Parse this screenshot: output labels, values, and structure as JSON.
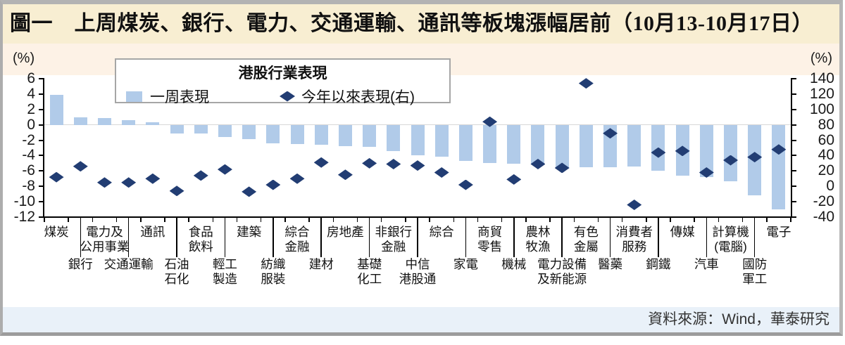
{
  "title": "圖一　上周煤炭、銀行、電力、交通運輸、通訊等板塊漲幅居前（10月13-10月17日）",
  "source": "資料來源：Wind，華泰研究",
  "legend": {
    "title": "港股行業表現",
    "week_label": "一周表現",
    "ytd_label": "今年以來表現(右)"
  },
  "colors": {
    "bar": "#b1cbe9",
    "diamond": "#223d73",
    "title_bg": "#f8eed2",
    "header_band_bg": "#fdf2e6",
    "source_bg": "#e9f1f9",
    "zero_line": "#d8d8d8",
    "frame": "#b0b0b0"
  },
  "chart_data": {
    "type": "bar",
    "title": "港股行業表現",
    "legend_position": "top",
    "grid": "zero-line-only",
    "left_axis": {
      "label": "(%)",
      "min": -12,
      "max": 6,
      "tick_step": 2,
      "ticks": [
        6,
        4,
        2,
        0,
        -2,
        -4,
        -6,
        -8,
        -10,
        -12
      ]
    },
    "right_axis": {
      "label": "(%)",
      "min": -40,
      "max": 140,
      "tick_step": 20,
      "ticks": [
        140,
        120,
        100,
        80,
        60,
        40,
        20,
        0,
        -20,
        -40
      ]
    },
    "categories": [
      "煤炭",
      "銀行",
      "電力及公用事業",
      "交通運輸",
      "通訊",
      "石油石化",
      "食品飲料",
      "輕工製造",
      "建築",
      "紡織服裝",
      "綜合金融",
      "建材",
      "房地產",
      "基礎化工",
      "非銀行金融",
      "中信港股通",
      "綜合",
      "家電",
      "商貿零售",
      "機械",
      "農林牧漁",
      "電力設備及新能源",
      "有色金屬",
      "醫藥",
      "消費者服務",
      "鋼鐵",
      "傳媒",
      "汽車",
      "計算機(電腦)",
      "國防軍工",
      "電子"
    ],
    "category_label_lines": [
      [
        "煤炭"
      ],
      [
        "銀行"
      ],
      [
        "電力及",
        "公用事業"
      ],
      [
        "交通運輸"
      ],
      [
        "通訊"
      ],
      [
        "石油",
        "石化"
      ],
      [
        "食品",
        "飲料"
      ],
      [
        "輕工",
        "製造"
      ],
      [
        "建築"
      ],
      [
        "紡織",
        "服裝"
      ],
      [
        "綜合",
        "金融"
      ],
      [
        "建材"
      ],
      [
        "房地產"
      ],
      [
        "基礎",
        "化工"
      ],
      [
        "非銀行",
        "金融"
      ],
      [
        "中信",
        "港股通"
      ],
      [
        "綜合"
      ],
      [
        "家電"
      ],
      [
        "商貿",
        "零售"
      ],
      [
        "機械"
      ],
      [
        "農林",
        "牧漁"
      ],
      [
        "電力設備",
        "及新能源"
      ],
      [
        "有色",
        "金屬"
      ],
      [
        "醫藥"
      ],
      [
        "消費者",
        "服務"
      ],
      [
        "鋼鐵"
      ],
      [
        "傳媒"
      ],
      [
        "汽車"
      ],
      [
        "計算機",
        "(電腦)"
      ],
      [
        "國防",
        "軍工"
      ],
      [
        "電子"
      ]
    ],
    "series": [
      {
        "name": "一周表現",
        "type": "bar",
        "axis": "left",
        "unit": "%",
        "values": [
          3.9,
          1.0,
          0.9,
          0.6,
          0.3,
          -1.1,
          -1.1,
          -1.6,
          -1.9,
          -2.4,
          -2.5,
          -2.6,
          -2.8,
          -2.9,
          -3.4,
          -4.0,
          -4.1,
          -4.7,
          -5.0,
          -5.1,
          -5.1,
          -5.7,
          -5.5,
          -5.5,
          -5.4,
          -6.0,
          -6.6,
          -6.8,
          -7.3,
          -9.2,
          -11.0
        ]
      },
      {
        "name": "今年以來表現(右)",
        "type": "scatter",
        "axis": "right",
        "unit": "%",
        "values": [
          12,
          26,
          5,
          5,
          10,
          -6,
          14,
          22,
          -7,
          2,
          10,
          31,
          15,
          30,
          29,
          27,
          18,
          2,
          84,
          9,
          29,
          24,
          134,
          69,
          -24,
          44,
          46,
          18,
          34,
          38,
          48
        ]
      }
    ]
  }
}
